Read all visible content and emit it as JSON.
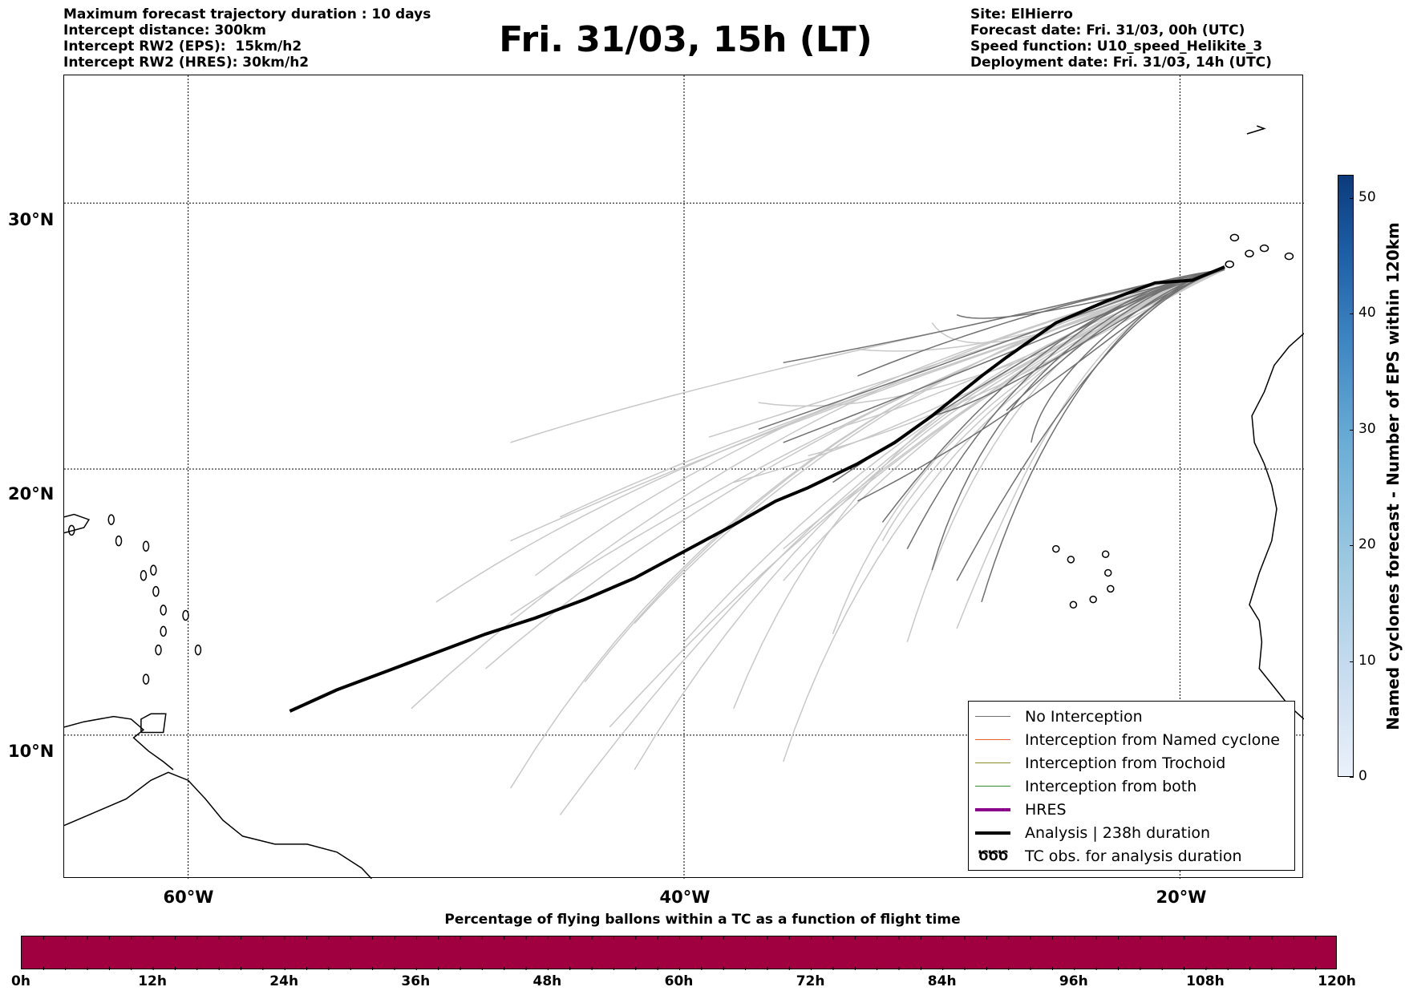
{
  "header": {
    "left_lines": [
      "Maximum forecast trajectory duration : 10 days",
      "Intercept distance: 300km",
      "Intercept RW2 (EPS):  15km/h2",
      "Intercept RW2 (HRES): 30km/h2"
    ],
    "title": "Fri. 31/03, 15h (LT)",
    "right_lines": [
      "Site: ElHierro",
      "Forecast date: Fri. 31/03, 00h (UTC)",
      "Speed function: U10_speed_Helikite_3",
      "Deployment date: Fri. 31/03, 14h (UTC)"
    ]
  },
  "map": {
    "lat_labels": [
      "30°N",
      "20°N",
      "10°N"
    ],
    "lon_labels": [
      "60°W",
      "40°W",
      "20°W"
    ],
    "lon_range": [
      -65,
      -15
    ],
    "lat_range": [
      4.6,
      34.8
    ],
    "colors": {
      "no_interception": "#707070",
      "light_track": "#c8c8c8",
      "analysis": "#000000",
      "named_cyclone": "#e8602c",
      "trochoid": "#8a8a2a",
      "both": "#2e8b2e",
      "hres": "#8b008b"
    }
  },
  "legend": {
    "items": [
      {
        "label": "No Interception",
        "color": "#707070",
        "width": 1.5
      },
      {
        "label": "Interception from Named cyclone",
        "color": "#e8602c",
        "width": 1.5
      },
      {
        "label": "Interception from Trochoid",
        "color": "#8a8a2a",
        "width": 1.5
      },
      {
        "label": "Interception from both",
        "color": "#2e8b2e",
        "width": 1.5
      },
      {
        "label": "HRES",
        "color": "#8b008b",
        "width": 4
      },
      {
        "label": "Analysis | 238h duration",
        "color": "#000000",
        "width": 4
      }
    ],
    "tc_label": "TC obs. for analysis duration",
    "tc_symbol": "ԾԾԾ"
  },
  "colorbar": {
    "title": "Named cyclones forecast - Number of EPS within 120km",
    "ticks": [
      "0",
      "10",
      "20",
      "30",
      "40",
      "50"
    ],
    "range": [
      0,
      52
    ]
  },
  "bottom": {
    "title": "Percentage of flying ballons within a TC as a function of flight time",
    "ticks": [
      "0h",
      "12h",
      "24h",
      "36h",
      "48h",
      "60h",
      "72h",
      "84h",
      "96h",
      "108h",
      "120h"
    ],
    "bar_color": "#a00040"
  }
}
